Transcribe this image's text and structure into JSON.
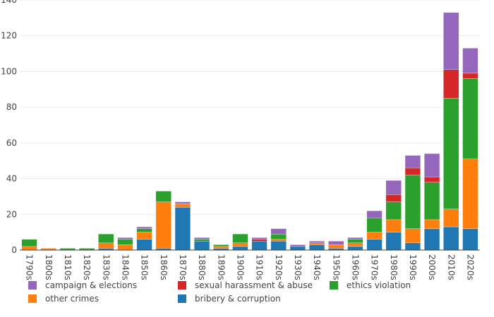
{
  "chart_data": {
    "type": "bar",
    "stacked": true,
    "title": "",
    "xlabel": "",
    "ylabel": "",
    "ylim": [
      0,
      140
    ],
    "yticks": [
      0,
      20,
      40,
      60,
      80,
      100,
      120,
      140
    ],
    "grid": "horizontal",
    "legend_position": "bottom",
    "categories": [
      "1790s",
      "1800s",
      "1810s",
      "1820s",
      "1830s",
      "1840s",
      "1850s",
      "1860s",
      "1870s",
      "1880s",
      "1890s",
      "1900s",
      "1910s",
      "1920s",
      "1930s",
      "1940s",
      "1950s",
      "1960s",
      "1970s",
      "1980s",
      "1990s",
      "2000s",
      "2010s",
      "2020s"
    ],
    "series": [
      {
        "name": "bribery & corruption",
        "color": "#1f77b4",
        "values": [
          0,
          0,
          0,
          0,
          1,
          0,
          6,
          1,
          24,
          5,
          1,
          2,
          5,
          5,
          2,
          3,
          1,
          2,
          6,
          10,
          4,
          12,
          13,
          12
        ]
      },
      {
        "name": "other crimes",
        "color": "#ff7f0e",
        "values": [
          2,
          1,
          0,
          0,
          3,
          3,
          4,
          26,
          2,
          0,
          1,
          2,
          0,
          1,
          0,
          1,
          2,
          2,
          4,
          7,
          8,
          5,
          10,
          39
        ]
      },
      {
        "name": "ethics violation",
        "color": "#2ca02c",
        "values": [
          4,
          0,
          1,
          1,
          5,
          3,
          2,
          6,
          0,
          1,
          1,
          5,
          0,
          3,
          0,
          0,
          0,
          2,
          8,
          10,
          30,
          21,
          62,
          45
        ]
      },
      {
        "name": "sexual harassment & abuse",
        "color": "#d62728",
        "values": [
          0,
          0,
          0,
          0,
          0,
          0,
          0,
          0,
          0,
          0,
          0,
          0,
          1,
          0,
          0,
          0,
          0,
          0,
          0,
          4,
          4,
          3,
          16,
          3
        ]
      },
      {
        "name": "campaign & elections",
        "color": "#9467bd",
        "values": [
          0,
          0,
          0,
          0,
          0,
          1,
          1,
          0,
          1,
          1,
          0,
          0,
          1,
          3,
          1,
          1,
          2,
          1,
          4,
          8,
          7,
          13,
          32,
          14
        ]
      }
    ],
    "legend_order": [
      "campaign & elections",
      "sexual harassment & abuse",
      "ethics violation",
      "other crimes",
      "bribery & corruption"
    ]
  }
}
